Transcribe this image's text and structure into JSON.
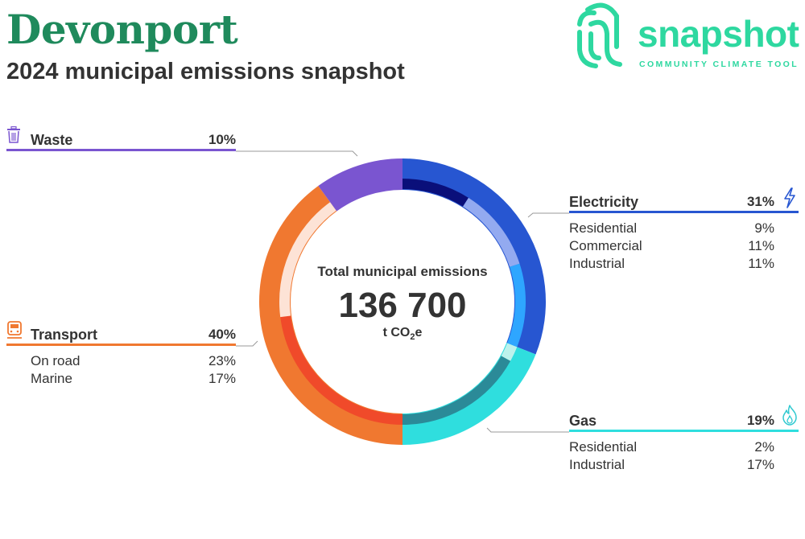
{
  "header": {
    "title": "Devonport",
    "subtitle": "2024 municipal emissions snapshot"
  },
  "logo": {
    "word": "snapshot",
    "tagline": "COMMUNITY CLIMATE TOOL",
    "color": "#2ed8a0"
  },
  "center": {
    "title": "Total municipal emissions",
    "value": "136 700",
    "unit_prefix": "t CO",
    "unit_sub": "2",
    "unit_suffix": "e"
  },
  "chart_data": {
    "type": "pie",
    "title": "Total municipal emissions",
    "total": 136700,
    "unit": "t CO2e",
    "categories": [
      {
        "name": "Electricity",
        "percent": 31,
        "color": "#2756d1",
        "icon": "lightning-icon",
        "subcategories": [
          {
            "name": "Residential",
            "percent": 9,
            "color": "#0a0f7a"
          },
          {
            "name": "Commercial",
            "percent": 11,
            "color": "#93aaf0"
          },
          {
            "name": "Industrial",
            "percent": 11,
            "color": "#2ea6ff"
          }
        ]
      },
      {
        "name": "Gas",
        "percent": 19,
        "color": "#2fdede",
        "icon": "flame-icon",
        "subcategories": [
          {
            "name": "Residential",
            "percent": 2,
            "color": "#bdf2ec"
          },
          {
            "name": "Industrial",
            "percent": 17,
            "color": "#2b8a98"
          }
        ]
      },
      {
        "name": "Transport",
        "percent": 40,
        "color": "#f07830",
        "icon": "train-icon",
        "subcategories": [
          {
            "name": "On road",
            "percent": 23,
            "color": "#f04a2a"
          },
          {
            "name": "Marine",
            "percent": 17,
            "color": "#fde3d6"
          }
        ]
      },
      {
        "name": "Waste",
        "percent": 10,
        "color": "#7a55d0",
        "icon": "trash-bin-icon",
        "subcategories": []
      }
    ]
  },
  "labels": {
    "electricity": {
      "name": "Electricity",
      "pct": "31%",
      "subs": [
        {
          "name": "Residential",
          "pct": "9%"
        },
        {
          "name": "Commercial",
          "pct": "11%"
        },
        {
          "name": "Industrial",
          "pct": "11%"
        }
      ]
    },
    "gas": {
      "name": "Gas",
      "pct": "19%",
      "subs": [
        {
          "name": "Residential",
          "pct": "2%"
        },
        {
          "name": "Industrial",
          "pct": "17%"
        }
      ]
    },
    "transport": {
      "name": "Transport",
      "pct": "40%",
      "subs": [
        {
          "name": "On road",
          "pct": "23%"
        },
        {
          "name": "Marine",
          "pct": "17%"
        }
      ]
    },
    "waste": {
      "name": "Waste",
      "pct": "10%"
    }
  }
}
